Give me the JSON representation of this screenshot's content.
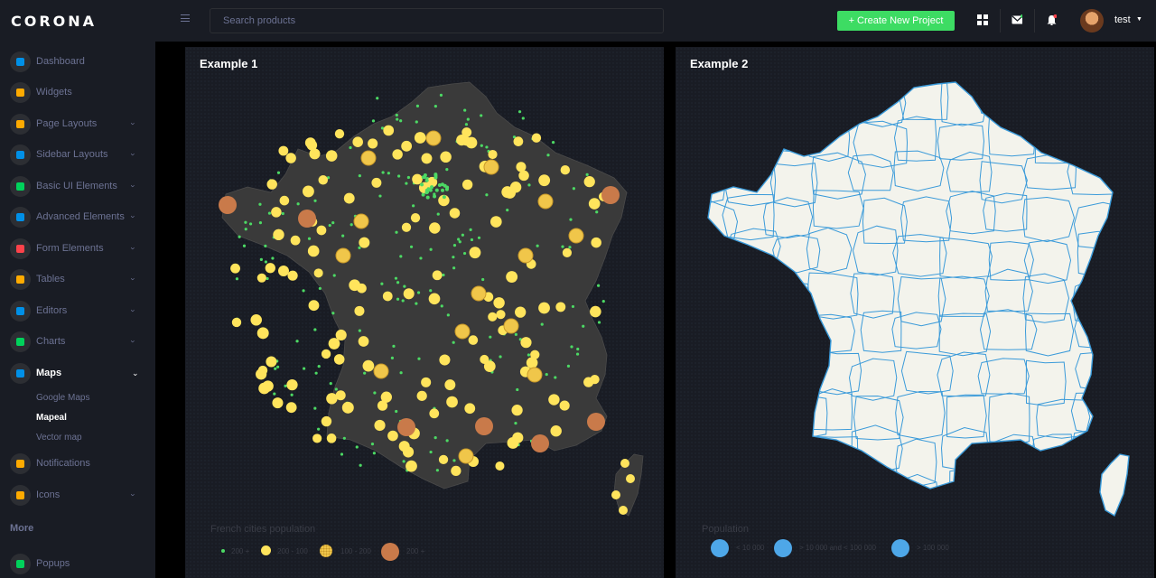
{
  "brand": "CORONA",
  "search": {
    "placeholder": "Search products"
  },
  "header": {
    "create_label": "+ Create New Project",
    "user_name": "test"
  },
  "sidebar": {
    "items": [
      {
        "label": "Dashboard",
        "icon": "speedometer-icon",
        "color": "#0090e7",
        "chevron": false
      },
      {
        "label": "Widgets",
        "icon": "widgets-icon",
        "color": "#ffab00",
        "chevron": false
      },
      {
        "label": "Page Layouts",
        "icon": "page-layout-icon",
        "color": "#ffab00",
        "chevron": true
      },
      {
        "label": "Sidebar Layouts",
        "icon": "sidebar-layout-icon",
        "color": "#0090e7",
        "chevron": true
      },
      {
        "label": "Basic UI Elements",
        "icon": "laptop-icon",
        "color": "#00d25b",
        "chevron": true
      },
      {
        "label": "Advanced Elements",
        "icon": "gear-icon",
        "color": "#0090e7",
        "chevron": true
      },
      {
        "label": "Form Elements",
        "icon": "form-icon",
        "color": "#fc424a",
        "chevron": true
      },
      {
        "label": "Tables",
        "icon": "table-icon",
        "color": "#ffab00",
        "chevron": true
      },
      {
        "label": "Editors",
        "icon": "text-editor-icon",
        "color": "#0090e7",
        "chevron": true
      },
      {
        "label": "Charts",
        "icon": "chart-icon",
        "color": "#00d25b",
        "chevron": true
      },
      {
        "label": "Maps",
        "icon": "map-marker-icon",
        "color": "#0090e7",
        "chevron": true,
        "active": true
      },
      {
        "label": "Notifications",
        "icon": "bell-icon",
        "color": "#ffab00",
        "chevron": false
      },
      {
        "label": "Icons",
        "icon": "icons-icon",
        "color": "#ffab00",
        "chevron": true
      },
      {
        "label": "Popups",
        "icon": "popup-icon",
        "color": "#00d25b",
        "chevron": false
      }
    ],
    "submenu": [
      "Google Maps",
      "Mapeal",
      "Vector map"
    ],
    "active_sub": "Mapeal",
    "more": "More"
  },
  "example1": {
    "title": "Example 1",
    "legend_title": "French cities population",
    "legend": [
      {
        "label": "200 +",
        "color": "#4cd964"
      },
      {
        "label": "200 - 100",
        "color": "#ffe45c"
      },
      {
        "label": "100 - 200",
        "color": "#f0c64a"
      },
      {
        "label": "200 +",
        "color": "#c97a4a"
      }
    ]
  },
  "example2": {
    "title": "Example 2",
    "legend_title": "Population",
    "legend": [
      {
        "label": "< 10 000",
        "color": "#4ea7e8"
      },
      {
        "label": "> 10 000 and < 100 000",
        "color": "#4ea7e8"
      },
      {
        "label": "> 100 000",
        "color": "#4ea7e8"
      }
    ]
  },
  "colors": {
    "accent_green": "#3ddc63",
    "map1_land": "#3a3a3a",
    "map2_land": "#f3f3ec",
    "map2_border": "#3a9ad9"
  }
}
